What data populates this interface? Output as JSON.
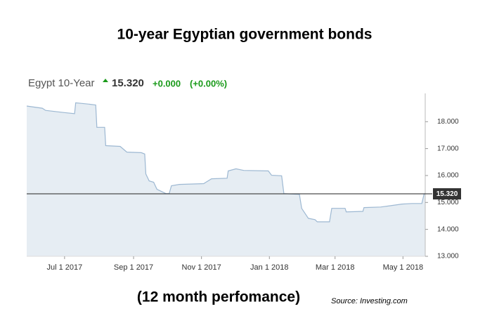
{
  "header": {
    "name": "Egypt 10-Year",
    "price": "15.320",
    "change": "+0.000",
    "change_pct": "(+0.00%)"
  },
  "chart_data": {
    "type": "area",
    "title": "10-year Egyptian government bonds",
    "subtitle": "(12 month perfomance)",
    "source": "Source: Investing.com",
    "x": [
      "2017-05-28",
      "2017-06-11",
      "2017-06-14",
      "2017-06-30",
      "2017-07-10",
      "2017-07-11",
      "2017-07-23",
      "2017-07-29",
      "2017-07-30",
      "2017-08-06",
      "2017-08-07",
      "2017-08-20",
      "2017-08-26",
      "2017-09-08",
      "2017-09-11",
      "2017-09-12",
      "2017-09-15",
      "2017-09-19",
      "2017-09-22",
      "2017-09-25",
      "2017-09-30",
      "2017-10-03",
      "2017-10-05",
      "2017-10-12",
      "2017-11-03",
      "2017-11-05",
      "2017-11-10",
      "2017-11-24",
      "2017-11-25",
      "2017-12-02",
      "2017-12-09",
      "2017-12-31",
      "2018-01-03",
      "2018-01-12",
      "2018-01-14",
      "2018-01-28",
      "2018-01-30",
      "2018-02-05",
      "2018-02-11",
      "2018-02-13",
      "2018-02-24",
      "2018-02-26",
      "2018-03-10",
      "2018-03-11",
      "2018-03-26",
      "2018-03-27",
      "2018-04-11",
      "2018-04-20",
      "2018-04-30",
      "2018-05-09",
      "2018-05-18",
      "2018-05-20",
      "2018-05-21"
    ],
    "values": [
      18.58,
      18.5,
      18.42,
      18.34,
      18.3,
      18.7,
      18.65,
      18.62,
      17.79,
      17.79,
      17.11,
      17.08,
      16.87,
      16.85,
      16.8,
      16.06,
      15.8,
      15.75,
      15.49,
      15.43,
      15.33,
      15.33,
      15.62,
      15.67,
      15.7,
      15.75,
      15.88,
      15.9,
      16.17,
      16.25,
      16.19,
      16.17,
      16.01,
      15.99,
      15.33,
      15.3,
      14.78,
      14.41,
      14.36,
      14.28,
      14.28,
      14.78,
      14.78,
      14.65,
      14.67,
      14.81,
      14.83,
      14.88,
      14.94,
      14.96,
      14.96,
      15.32,
      15.32
    ],
    "line_color": "#9db8d2",
    "fill_color": "#e6edf3",
    "xlim": [
      "2017-05-28",
      "2018-05-21"
    ],
    "xticks": [
      {
        "value": "2017-07-01",
        "label": "Jul 1 2017"
      },
      {
        "value": "2017-09-01",
        "label": "Sep 1 2017"
      },
      {
        "value": "2017-11-01",
        "label": "Nov 1 2017"
      },
      {
        "value": "2018-01-01",
        "label": "Jan 1 2018"
      },
      {
        "value": "2018-03-01",
        "label": "Mar 1 2018"
      },
      {
        "value": "2018-05-01",
        "label": "May 1 2018"
      }
    ],
    "ylim": [
      13,
      19.05
    ],
    "yticks": [
      {
        "value": 13,
        "label": "13.000"
      },
      {
        "value": 14,
        "label": "14.000"
      },
      {
        "value": 15,
        "label": "15.000"
      },
      {
        "value": 16,
        "label": "16.000"
      },
      {
        "value": 17,
        "label": "17.000"
      },
      {
        "value": 18,
        "label": "18.000"
      }
    ],
    "current": {
      "value": 15.32,
      "label": "15.320"
    },
    "grid": false
  }
}
